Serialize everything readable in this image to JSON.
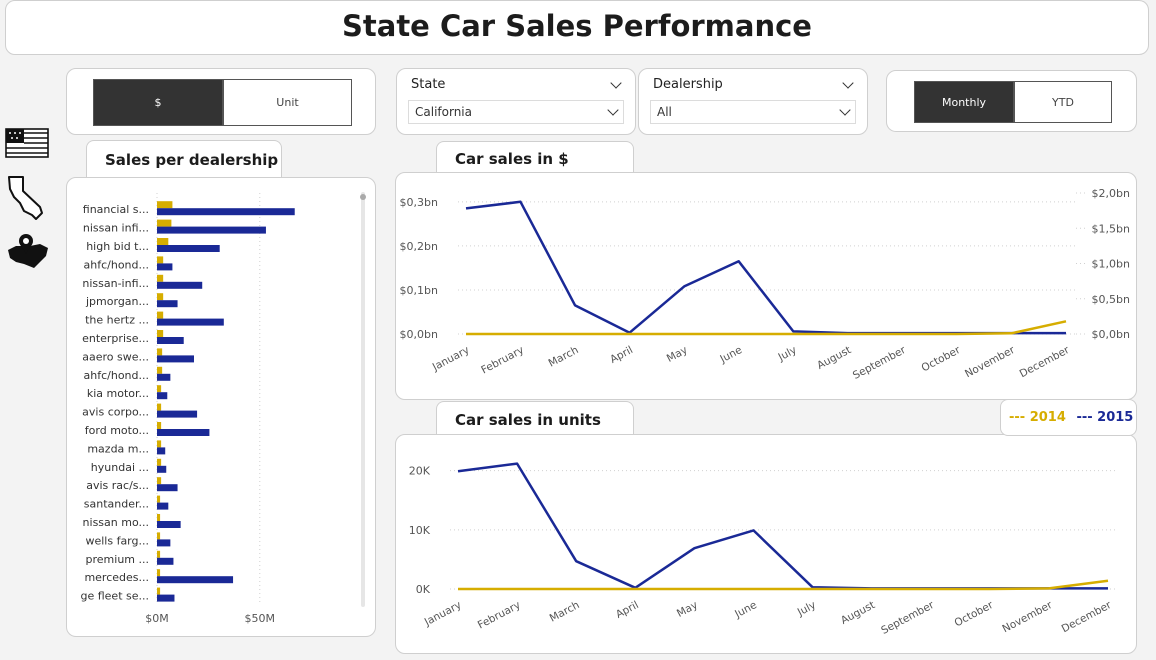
{
  "page": {
    "title": "State Car Sales Performance"
  },
  "measure_toggle": {
    "options": [
      "$",
      "Unit"
    ],
    "selected": "$"
  },
  "period_toggle": {
    "options": [
      "Monthly",
      "YTD"
    ],
    "selected": "Monthly"
  },
  "filters": {
    "state": {
      "label": "State",
      "value": "California"
    },
    "dealership": {
      "label": "Dealership",
      "value": "All"
    }
  },
  "nav_icons": [
    "usa-flag-icon",
    "california-map-icon",
    "usa-map-pin-icon"
  ],
  "legend": {
    "items": [
      {
        "name": "2014",
        "color": "#d6ad00"
      },
      {
        "name": "2015",
        "color": "#1a2996"
      }
    ]
  },
  "colors": {
    "s2014": "#d6ad00",
    "s2015": "#1a2996"
  },
  "chart_data": [
    {
      "type": "bar",
      "title": "Sales per dealership",
      "orientation": "horizontal",
      "categories": [
        "financial s...",
        "nissan infi...",
        "high bid t...",
        "ahfc/hond...",
        "nissan-infi...",
        "jpmorgan...",
        "the hertz ...",
        "enterprise...",
        "aaero swe...",
        "ahfc/hond...",
        "kia motor...",
        "avis corpo...",
        "ford moto...",
        "mazda m...",
        "hyundai ...",
        "avis rac/s...",
        "santander...",
        "nissan mo...",
        "wells farg...",
        "premium ...",
        "mercedes...",
        "ge fleet se..."
      ],
      "series": [
        {
          "name": "2014",
          "values": [
            7.5,
            7,
            5.5,
            3,
            3,
            3,
            3,
            3,
            2.5,
            2.5,
            2,
            2,
            2,
            2,
            2,
            2,
            1.5,
            1.5,
            1.5,
            1.5,
            1.5,
            1.5
          ]
        },
        {
          "name": "2015",
          "values": [
            67,
            53,
            30.5,
            7.5,
            22,
            10,
            32.5,
            13,
            18,
            6.5,
            5,
            19.5,
            25.5,
            4,
            4.5,
            10,
            5.5,
            11.5,
            6.5,
            8,
            37,
            8.5
          ]
        }
      ],
      "xlim": [
        0,
        90
      ],
      "xticks": [
        "$0M",
        "$50M"
      ],
      "xtick_values": [
        0,
        50
      ]
    },
    {
      "type": "line",
      "title": "Car sales in $",
      "categories": [
        "January",
        "February",
        "March",
        "April",
        "May",
        "June",
        "July",
        "August",
        "September",
        "October",
        "November",
        "December"
      ],
      "series": [
        {
          "name": "2015",
          "axis": "left",
          "values": [
            0.285,
            0.3,
            0.065,
            0.003,
            0.108,
            0.165,
            0.006,
            0.002,
            0.002,
            0.002,
            0.002,
            0.002
          ]
        },
        {
          "name": "2014",
          "axis": "right",
          "values": [
            0,
            0,
            0,
            0,
            0,
            0,
            0,
            0,
            0,
            0,
            0.01,
            0.18
          ]
        }
      ],
      "ylim_left": [
        0,
        0.32
      ],
      "yticks_left": [
        "$0,0bn",
        "$0,1bn",
        "$0,2bn",
        "$0,3bn"
      ],
      "ytick_values_left": [
        0,
        0.1,
        0.2,
        0.3
      ],
      "ylim_right": [
        0,
        2.0
      ],
      "yticks_right": [
        "$0,0bn",
        "$0,5bn",
        "$1,0bn",
        "$1,5bn",
        "$2,0bn"
      ],
      "ytick_values_right": [
        0,
        0.5,
        1.0,
        1.5,
        2.0
      ],
      "grid": true
    },
    {
      "type": "line",
      "title": "Car sales in units",
      "categories": [
        "January",
        "February",
        "March",
        "April",
        "May",
        "June",
        "July",
        "August",
        "September",
        "October",
        "November",
        "December"
      ],
      "series": [
        {
          "name": "2015",
          "values": [
            19900,
            21200,
            4700,
            200,
            6900,
            9900,
            300,
            100,
            100,
            100,
            100,
            100
          ]
        },
        {
          "name": "2014",
          "values": [
            0,
            0,
            0,
            0,
            0,
            0,
            0,
            0,
            0,
            0,
            100,
            1400
          ]
        }
      ],
      "ylim": [
        0,
        24000
      ],
      "yticks": [
        "0K",
        "10K",
        "20K"
      ],
      "ytick_values": [
        0,
        10000,
        20000
      ],
      "grid": true
    }
  ]
}
